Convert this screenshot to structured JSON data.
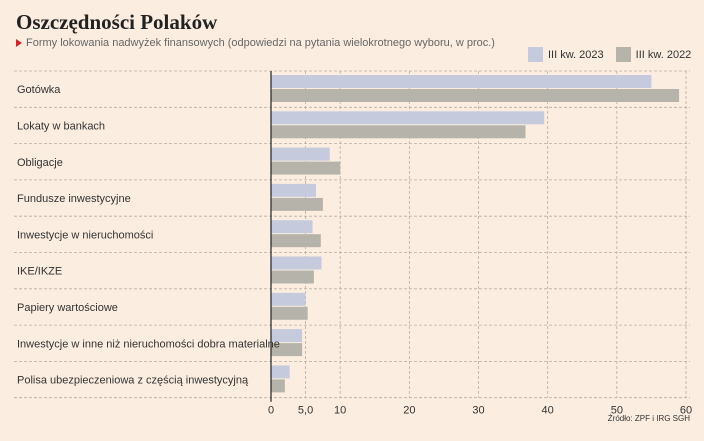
{
  "header": {
    "title": "Oszczędności Polaków",
    "subtitle": "Formy lokowania nadwyżek finansowych (odpowiedzi na pytania wielokrotnego wyboru, w proc.)"
  },
  "legend": [
    {
      "name": "III kw. 2023",
      "color": "#c5cbdd"
    },
    {
      "name": "III kw. 2022",
      "color": "#b6b4aa"
    }
  ],
  "source": "Źródło: ZPF i IRG SGH",
  "chart_data": {
    "type": "bar",
    "orientation": "horizontal",
    "categories": [
      "Gotówka",
      "Lokaty w bankach",
      "Obligacje",
      "Fundusze inwestycyjne",
      "Inwestycje w nieruchomości",
      "IKE/IKZE",
      "Papiery wartościowe",
      "Inwestycje w inne niż nieruchomości dobra materialne",
      "Polisa ubezpieczeniowa z częścią inwestycyjną"
    ],
    "series": [
      {
        "name": "III kw. 2023",
        "color": "#c5cbdd",
        "values": [
          55,
          39.5,
          8.5,
          6.5,
          6,
          7.3,
          5,
          4.5,
          2.7
        ]
      },
      {
        "name": "III kw. 2022",
        "color": "#b6b4aa",
        "values": [
          59,
          36.8,
          10,
          7.5,
          7.2,
          6.2,
          5.3,
          4.5,
          2
        ]
      }
    ],
    "xticks": [
      0,
      5.0,
      10,
      20,
      30,
      40,
      50,
      60
    ],
    "xtick_labels": [
      "0",
      "5,0",
      "10",
      "20",
      "30",
      "40",
      "50",
      "60"
    ],
    "xlim": [
      0,
      60
    ],
    "grid": true,
    "legend_position": "top-right"
  }
}
